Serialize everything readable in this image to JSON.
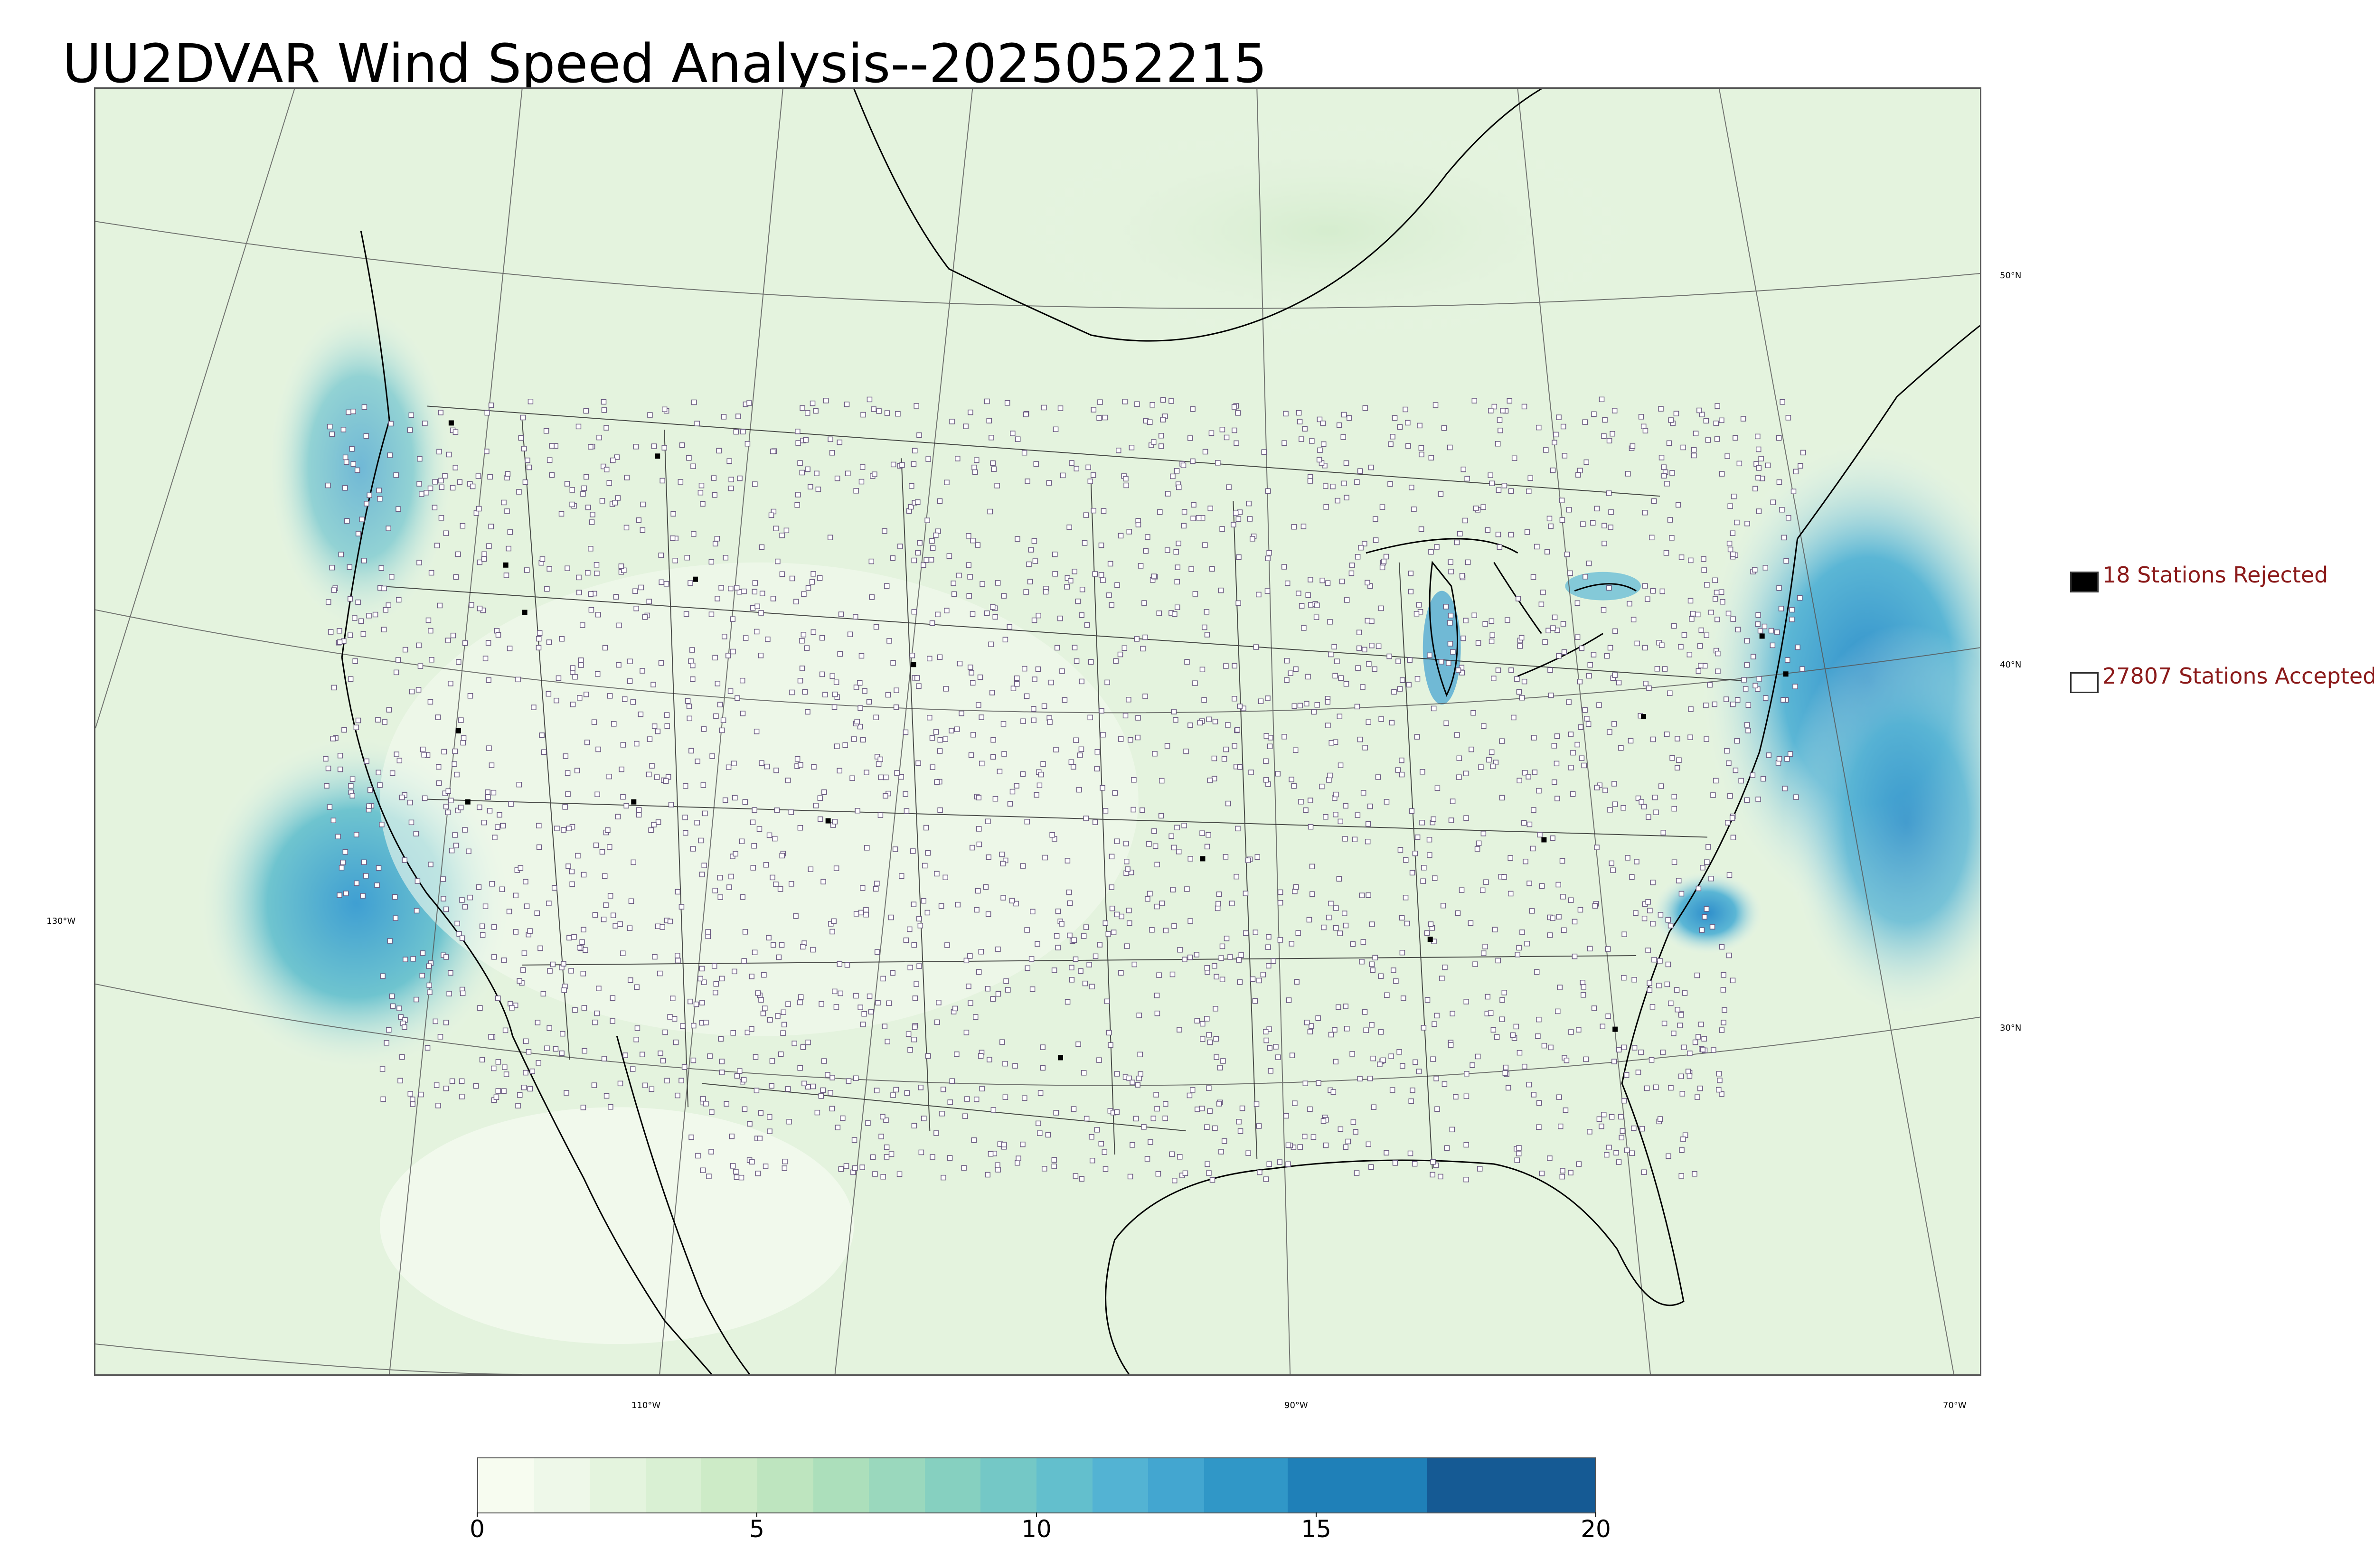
{
  "title": "UU2DVAR Wind Speed Analysis--2025052215",
  "map": {
    "lat_labels": [
      "50°N",
      "40°N",
      "30°N"
    ],
    "lon_labels": [
      "130°W",
      "110°W",
      "90°W",
      "70°W"
    ],
    "background_color": "#eef7e9",
    "land_outline_color": "#000000",
    "station_marker_color": "#6a5a80"
  },
  "legend": {
    "rejected": {
      "label": "18 Stations Rejected",
      "swatch_color": "#000000",
      "count": 18
    },
    "accepted": {
      "label": "27807 Stations Accepted",
      "swatch_color": "#ffffff",
      "count": 27807
    },
    "text_color": "#8b1a1a"
  },
  "colorbar": {
    "ticks": [
      "0",
      "5",
      "10",
      "15",
      "20"
    ],
    "range": [
      0,
      20
    ],
    "bins": [
      {
        "from": 0,
        "to": 1,
        "color": "#f7fcf0"
      },
      {
        "from": 1,
        "to": 2,
        "color": "#eef8e9"
      },
      {
        "from": 2,
        "to": 3,
        "color": "#e4f4de"
      },
      {
        "from": 3,
        "to": 4,
        "color": "#d9f0d3"
      },
      {
        "from": 4,
        "to": 5,
        "color": "#cdebc7"
      },
      {
        "from": 5,
        "to": 6,
        "color": "#bee5bf"
      },
      {
        "from": 6,
        "to": 7,
        "color": "#acdfbb"
      },
      {
        "from": 7,
        "to": 8,
        "color": "#9ad8bd"
      },
      {
        "from": 8,
        "to": 9,
        "color": "#86d0c0"
      },
      {
        "from": 9,
        "to": 10,
        "color": "#74c8c6"
      },
      {
        "from": 10,
        "to": 11,
        "color": "#63bfcd"
      },
      {
        "from": 11,
        "to": 12,
        "color": "#53b3d3"
      },
      {
        "from": 12,
        "to": 13,
        "color": "#43a6d0"
      },
      {
        "from": 13,
        "to": 14.5,
        "color": "#3097c7"
      },
      {
        "from": 14.5,
        "to": 17,
        "color": "#1f80b8"
      },
      {
        "from": 17,
        "to": 20,
        "color": "#155a94"
      }
    ]
  }
}
